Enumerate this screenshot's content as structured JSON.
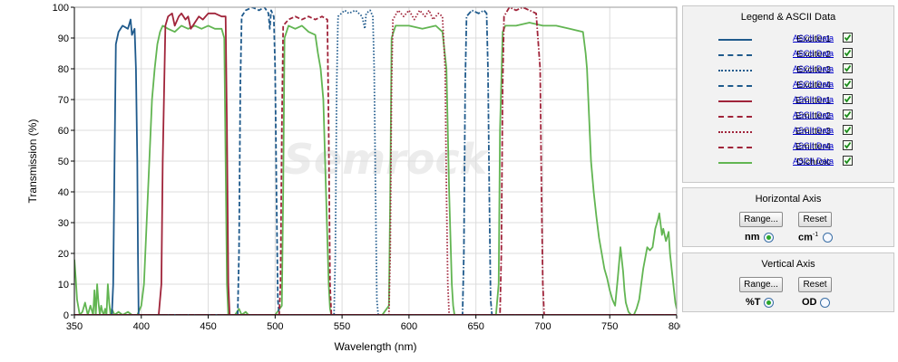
{
  "chart_data": {
    "type": "line",
    "title": "",
    "xlabel": "Wavelength (nm)",
    "ylabel": "Transmission (%)",
    "xlim": [
      350,
      800
    ],
    "ylim": [
      0,
      100
    ],
    "x_ticks": [
      350,
      400,
      450,
      500,
      550,
      600,
      650,
      700,
      750,
      800
    ],
    "y_ticks": [
      0,
      10,
      20,
      30,
      40,
      50,
      60,
      70,
      80,
      90,
      100
    ],
    "grid": true,
    "watermark": "Semrock",
    "series": [
      {
        "name": "Exciter1",
        "color": "#1f5a8c",
        "dash": "solid",
        "points": [
          [
            350,
            0
          ],
          [
            378,
            0
          ],
          [
            379,
            10
          ],
          [
            380,
            50
          ],
          [
            381,
            88
          ],
          [
            383,
            92
          ],
          [
            386,
            94
          ],
          [
            390,
            93
          ],
          [
            392,
            96
          ],
          [
            393,
            91
          ],
          [
            395,
            93
          ],
          [
            396,
            80
          ],
          [
            397,
            50
          ],
          [
            397.5,
            20
          ],
          [
            398,
            0
          ],
          [
            800,
            0
          ]
        ]
      },
      {
        "name": "Exciter2",
        "color": "#1f5a8c",
        "dash": "dashed",
        "points": [
          [
            350,
            0
          ],
          [
            472,
            0
          ],
          [
            473,
            20
          ],
          [
            474,
            75
          ],
          [
            475,
            97
          ],
          [
            478,
            99
          ],
          [
            483,
            100
          ],
          [
            488,
            99
          ],
          [
            492,
            100
          ],
          [
            495,
            98
          ],
          [
            496,
            93
          ],
          [
            497,
            99
          ],
          [
            499,
            97
          ],
          [
            500,
            80
          ],
          [
            501,
            40
          ],
          [
            502,
            5
          ],
          [
            503,
            0
          ],
          [
            800,
            0
          ]
        ]
      },
      {
        "name": "Exciter3",
        "color": "#1f5a8c",
        "dash": "dotted",
        "points": [
          [
            350,
            0
          ],
          [
            544,
            0
          ],
          [
            545,
            20
          ],
          [
            546,
            75
          ],
          [
            547,
            97
          ],
          [
            552,
            99
          ],
          [
            555,
            98
          ],
          [
            560,
            99
          ],
          [
            565,
            97
          ],
          [
            567,
            93
          ],
          [
            568,
            98
          ],
          [
            571,
            99
          ],
          [
            573,
            97
          ],
          [
            574,
            80
          ],
          [
            575,
            40
          ],
          [
            576,
            5
          ],
          [
            577,
            0
          ],
          [
            800,
            0
          ]
        ]
      },
      {
        "name": "Exciter4",
        "color": "#1f5a8c",
        "dash": "dashdot",
        "points": [
          [
            350,
            0
          ],
          [
            640,
            0
          ],
          [
            641,
            20
          ],
          [
            642,
            75
          ],
          [
            643,
            97
          ],
          [
            647,
            99
          ],
          [
            652,
            98
          ],
          [
            656,
            99
          ],
          [
            658,
            98
          ],
          [
            659,
            80
          ],
          [
            660,
            40
          ],
          [
            661,
            5
          ],
          [
            662,
            0
          ],
          [
            800,
            0
          ]
        ]
      },
      {
        "name": "Emitter1",
        "color": "#a0243a",
        "dash": "solid",
        "points": [
          [
            350,
            0
          ],
          [
            413,
            0
          ],
          [
            415,
            10
          ],
          [
            416,
            50
          ],
          [
            418,
            94
          ],
          [
            420,
            97
          ],
          [
            423,
            98
          ],
          [
            425,
            94
          ],
          [
            428,
            97
          ],
          [
            430,
            98
          ],
          [
            433,
            96
          ],
          [
            435,
            97
          ],
          [
            437,
            93
          ],
          [
            440,
            95
          ],
          [
            443,
            97
          ],
          [
            446,
            96
          ],
          [
            450,
            98
          ],
          [
            455,
            98
          ],
          [
            460,
            97
          ],
          [
            463,
            97
          ],
          [
            464,
            60
          ],
          [
            465,
            10
          ],
          [
            466,
            0
          ],
          [
            800,
            0
          ]
        ]
      },
      {
        "name": "Emitter2",
        "color": "#a0243a",
        "dash": "dashed",
        "points": [
          [
            350,
            0
          ],
          [
            503,
            0
          ],
          [
            504,
            10
          ],
          [
            505,
            60
          ],
          [
            506,
            94
          ],
          [
            510,
            96
          ],
          [
            515,
            97
          ],
          [
            520,
            96
          ],
          [
            525,
            97
          ],
          [
            530,
            96
          ],
          [
            535,
            97
          ],
          [
            539,
            96
          ],
          [
            540,
            60
          ],
          [
            541,
            10
          ],
          [
            542,
            0
          ],
          [
            800,
            0
          ]
        ]
      },
      {
        "name": "Emitter3",
        "color": "#a0243a",
        "dash": "dotted",
        "points": [
          [
            350,
            0
          ],
          [
            585,
            0
          ],
          [
            586,
            20
          ],
          [
            587,
            75
          ],
          [
            588,
            96
          ],
          [
            592,
            99
          ],
          [
            596,
            97
          ],
          [
            600,
            99
          ],
          [
            604,
            96
          ],
          [
            608,
            99
          ],
          [
            612,
            97
          ],
          [
            615,
            99
          ],
          [
            618,
            96
          ],
          [
            622,
            98
          ],
          [
            625,
            97
          ],
          [
            627,
            80
          ],
          [
            628,
            40
          ],
          [
            629,
            10
          ],
          [
            630,
            0
          ],
          [
            800,
            0
          ]
        ]
      },
      {
        "name": "Emitter4",
        "color": "#a0243a",
        "dash": "dashdot",
        "points": [
          [
            350,
            0
          ],
          [
            668,
            0
          ],
          [
            669,
            20
          ],
          [
            670,
            75
          ],
          [
            671,
            97
          ],
          [
            675,
            100
          ],
          [
            680,
            99
          ],
          [
            685,
            100
          ],
          [
            690,
            99
          ],
          [
            695,
            98
          ],
          [
            698,
            80
          ],
          [
            699,
            40
          ],
          [
            700,
            10
          ],
          [
            701,
            0
          ],
          [
            800,
            0
          ]
        ]
      },
      {
        "name": "Dichroic",
        "color": "#62b552",
        "dash": "solid",
        "points": [
          [
            350,
            18
          ],
          [
            351,
            12
          ],
          [
            352,
            5
          ],
          [
            354,
            0
          ],
          [
            356,
            1
          ],
          [
            358,
            4
          ],
          [
            360,
            0
          ],
          [
            362,
            3
          ],
          [
            364,
            0
          ],
          [
            365,
            8
          ],
          [
            366,
            0
          ],
          [
            367,
            10
          ],
          [
            368,
            4
          ],
          [
            369,
            0
          ],
          [
            370,
            3
          ],
          [
            371,
            1
          ],
          [
            372,
            0
          ],
          [
            373,
            2
          ],
          [
            374,
            0
          ],
          [
            375,
            10
          ],
          [
            376,
            4
          ],
          [
            377,
            0
          ],
          [
            378,
            2
          ],
          [
            380,
            0
          ],
          [
            383,
            1
          ],
          [
            386,
            0
          ],
          [
            390,
            1
          ],
          [
            393,
            0
          ],
          [
            397,
            0
          ],
          [
            400,
            3
          ],
          [
            402,
            10
          ],
          [
            404,
            30
          ],
          [
            406,
            50
          ],
          [
            408,
            70
          ],
          [
            410,
            80
          ],
          [
            412,
            88
          ],
          [
            414,
            92
          ],
          [
            416,
            94
          ],
          [
            420,
            93
          ],
          [
            425,
            92
          ],
          [
            430,
            94
          ],
          [
            435,
            93
          ],
          [
            440,
            94
          ],
          [
            445,
            93
          ],
          [
            450,
            94
          ],
          [
            455,
            93
          ],
          [
            460,
            93
          ],
          [
            462,
            90
          ],
          [
            463,
            50
          ],
          [
            464,
            10
          ],
          [
            465,
            0
          ],
          [
            470,
            0
          ],
          [
            473,
            2
          ],
          [
            475,
            0
          ],
          [
            478,
            1
          ],
          [
            480,
            0
          ],
          [
            485,
            0
          ],
          [
            490,
            0
          ],
          [
            495,
            0
          ],
          [
            500,
            0
          ],
          [
            505,
            3
          ],
          [
            506,
            40
          ],
          [
            507,
            90
          ],
          [
            510,
            94
          ],
          [
            515,
            93
          ],
          [
            520,
            94
          ],
          [
            525,
            92
          ],
          [
            530,
            91
          ],
          [
            532,
            85
          ],
          [
            534,
            80
          ],
          [
            536,
            70
          ],
          [
            538,
            40
          ],
          [
            540,
            10
          ],
          [
            541,
            2
          ],
          [
            542,
            0
          ],
          [
            545,
            0
          ],
          [
            550,
            0
          ],
          [
            560,
            0
          ],
          [
            570,
            0
          ],
          [
            580,
            0
          ],
          [
            585,
            3
          ],
          [
            586,
            40
          ],
          [
            587,
            90
          ],
          [
            590,
            94
          ],
          [
            600,
            94
          ],
          [
            610,
            93
          ],
          [
            620,
            94
          ],
          [
            625,
            92
          ],
          [
            628,
            80
          ],
          [
            630,
            40
          ],
          [
            632,
            10
          ],
          [
            633,
            3
          ],
          [
            634,
            0
          ],
          [
            640,
            0
          ],
          [
            660,
            0
          ],
          [
            665,
            0
          ],
          [
            667,
            10
          ],
          [
            668,
            60
          ],
          [
            670,
            92
          ],
          [
            672,
            94
          ],
          [
            680,
            94
          ],
          [
            690,
            95
          ],
          [
            700,
            94
          ],
          [
            710,
            94
          ],
          [
            720,
            93
          ],
          [
            730,
            92
          ],
          [
            732,
            85
          ],
          [
            733,
            80
          ],
          [
            734,
            70
          ],
          [
            736,
            50
          ],
          [
            738,
            40
          ],
          [
            740,
            32
          ],
          [
            742,
            25
          ],
          [
            744,
            20
          ],
          [
            746,
            15
          ],
          [
            748,
            12
          ],
          [
            750,
            8
          ],
          [
            752,
            5
          ],
          [
            754,
            3
          ],
          [
            756,
            12
          ],
          [
            758,
            22
          ],
          [
            760,
            14
          ],
          [
            761,
            8
          ],
          [
            762,
            4
          ],
          [
            764,
            1
          ],
          [
            766,
            0
          ],
          [
            768,
            0
          ],
          [
            770,
            2
          ],
          [
            772,
            5
          ],
          [
            775,
            15
          ],
          [
            778,
            22
          ],
          [
            780,
            21
          ],
          [
            782,
            22
          ],
          [
            784,
            28
          ],
          [
            786,
            31
          ],
          [
            787,
            33
          ],
          [
            789,
            26
          ],
          [
            790,
            28
          ],
          [
            792,
            24
          ],
          [
            794,
            27
          ],
          [
            795,
            20
          ],
          [
            797,
            12
          ],
          [
            799,
            4
          ],
          [
            800,
            2
          ]
        ]
      }
    ]
  },
  "legend_panel": {
    "title": "Legend & ASCII Data",
    "link_label": "ASCII Data",
    "items": [
      {
        "name": "Exciter1",
        "color": "#1f5a8c",
        "dash": "solid"
      },
      {
        "name": "Exciter2",
        "color": "#1f5a8c",
        "dash": "dashed"
      },
      {
        "name": "Exciter3",
        "color": "#1f5a8c",
        "dash": "dotted"
      },
      {
        "name": "Exciter4",
        "color": "#1f5a8c",
        "dash": "dashdot"
      },
      {
        "name": "Emitter1",
        "color": "#a0243a",
        "dash": "solid"
      },
      {
        "name": "Emitter2",
        "color": "#a0243a",
        "dash": "dashed"
      },
      {
        "name": "Emitter3",
        "color": "#a0243a",
        "dash": "dotted"
      },
      {
        "name": "Emitter4",
        "color": "#a0243a",
        "dash": "dashdot"
      },
      {
        "name": "Dichroic",
        "color": "#62b552",
        "dash": "solid"
      }
    ]
  },
  "horizontal_axis_panel": {
    "title": "Horizontal Axis",
    "range_button": "Range...",
    "reset_button": "Reset",
    "option1": "nm",
    "option2_base": "cm",
    "option2_sup": "-1",
    "selected": "nm"
  },
  "vertical_axis_panel": {
    "title": "Vertical Axis",
    "range_button": "Range...",
    "reset_button": "Reset",
    "option1": "%T",
    "option2": "OD",
    "selected": "%T"
  }
}
